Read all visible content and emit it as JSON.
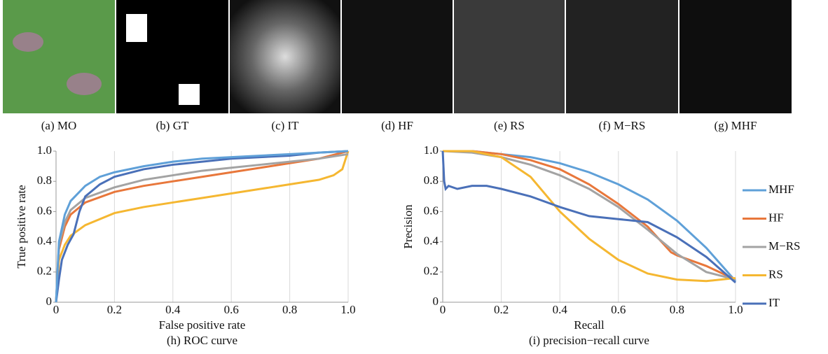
{
  "panels": [
    {
      "caption": "(a) MO"
    },
    {
      "caption": "(b) GT"
    },
    {
      "caption": "(c) IT"
    },
    {
      "caption": "(d) HF"
    },
    {
      "caption": "(e) RS"
    },
    {
      "caption": "(f) M−RS"
    },
    {
      "caption": "(g) MHF"
    }
  ],
  "chart_data": [
    {
      "type": "line",
      "title": "(h) ROC curve",
      "x_label": "False positive rate",
      "y_label": "True positive rate",
      "xlim": [
        0,
        1
      ],
      "ylim": [
        0,
        1
      ],
      "xticks": [
        0,
        0.2,
        0.4,
        0.6,
        0.8,
        {
          "value": 1,
          "label": "1.0"
        }
      ],
      "yticks": [
        0,
        0.2,
        0.4,
        0.6,
        0.8,
        {
          "value": 1,
          "label": "1.0"
        }
      ],
      "grid": "x",
      "series": [
        {
          "color": "#f5b731",
          "x": [
            0,
            0.01,
            0.03,
            0.05,
            0.1,
            0.2,
            0.3,
            0.4,
            0.5,
            0.6,
            0.7,
            0.8,
            0.9,
            0.95,
            0.98,
            1
          ],
          "values": [
            0,
            0.28,
            0.38,
            0.44,
            0.51,
            0.59,
            0.63,
            0.66,
            0.69,
            0.72,
            0.75,
            0.78,
            0.81,
            0.84,
            0.88,
            1
          ]
        },
        {
          "color": "#e8773b",
          "x": [
            0,
            0.01,
            0.03,
            0.05,
            0.1,
            0.2,
            0.3,
            0.4,
            0.5,
            0.6,
            0.7,
            0.8,
            0.9,
            1
          ],
          "values": [
            0,
            0.35,
            0.5,
            0.58,
            0.66,
            0.73,
            0.77,
            0.8,
            0.83,
            0.86,
            0.89,
            0.92,
            0.95,
            1
          ]
        },
        {
          "color": "#a3a3a3",
          "x": [
            0,
            0.01,
            0.03,
            0.05,
            0.1,
            0.2,
            0.3,
            0.4,
            0.5,
            0.6,
            0.7,
            0.8,
            0.9,
            1
          ],
          "values": [
            0,
            0.38,
            0.53,
            0.61,
            0.69,
            0.76,
            0.81,
            0.84,
            0.87,
            0.89,
            0.91,
            0.93,
            0.95,
            0.98
          ]
        },
        {
          "color": "#4a70b8",
          "x": [
            0,
            0.01,
            0.02,
            0.04,
            0.06,
            0.08,
            0.1,
            0.15,
            0.2,
            0.3,
            0.4,
            0.5,
            0.6,
            0.7,
            0.8,
            0.9,
            1
          ],
          "values": [
            0,
            0.15,
            0.28,
            0.38,
            0.45,
            0.6,
            0.7,
            0.78,
            0.83,
            0.88,
            0.91,
            0.93,
            0.95,
            0.96,
            0.97,
            0.99,
            1
          ]
        },
        {
          "color": "#5fa0d8",
          "x": [
            0,
            0.01,
            0.03,
            0.05,
            0.1,
            0.15,
            0.2,
            0.3,
            0.4,
            0.5,
            0.6,
            0.7,
            0.8,
            0.9,
            1
          ],
          "values": [
            0,
            0.4,
            0.58,
            0.67,
            0.77,
            0.83,
            0.86,
            0.9,
            0.93,
            0.95,
            0.96,
            0.97,
            0.98,
            0.99,
            1
          ]
        }
      ]
    },
    {
      "type": "line",
      "title": "(i) precision−recall curve",
      "x_label": "Recall",
      "y_label": "Precision",
      "xlim": [
        0,
        1
      ],
      "ylim": [
        0,
        1
      ],
      "xticks": [
        0,
        0.2,
        0.4,
        0.6,
        0.8,
        {
          "value": 1,
          "label": "1.0"
        }
      ],
      "yticks": [
        0,
        0.2,
        0.4,
        0.6,
        0.8,
        {
          "value": 1,
          "label": "1.0"
        }
      ],
      "grid": "x",
      "legend": "right",
      "series": [
        {
          "name": "MHF",
          "color": "#5fa0d8",
          "x": [
            0,
            0.1,
            0.2,
            0.3,
            0.4,
            0.5,
            0.6,
            0.7,
            0.8,
            0.9,
            0.95,
            1
          ],
          "values": [
            1,
            1,
            0.98,
            0.96,
            0.92,
            0.86,
            0.78,
            0.68,
            0.54,
            0.36,
            0.25,
            0.14
          ]
        },
        {
          "name": "HF",
          "color": "#e8773b",
          "x": [
            0,
            0.1,
            0.2,
            0.3,
            0.4,
            0.5,
            0.6,
            0.7,
            0.78,
            0.8,
            0.9,
            1
          ],
          "values": [
            1,
            1,
            0.98,
            0.94,
            0.88,
            0.78,
            0.65,
            0.5,
            0.33,
            0.31,
            0.24,
            0.15
          ]
        },
        {
          "name": "M−RS",
          "color": "#a3a3a3",
          "x": [
            0,
            0.1,
            0.2,
            0.3,
            0.4,
            0.5,
            0.6,
            0.7,
            0.8,
            0.9,
            1
          ],
          "values": [
            1,
            0.99,
            0.96,
            0.91,
            0.84,
            0.75,
            0.63,
            0.48,
            0.32,
            0.2,
            0.15
          ]
        },
        {
          "name": "RS",
          "color": "#f5b731",
          "x": [
            0,
            0.1,
            0.2,
            0.3,
            0.4,
            0.5,
            0.6,
            0.7,
            0.8,
            0.9,
            1
          ],
          "values": [
            1,
            1,
            0.96,
            0.83,
            0.6,
            0.42,
            0.28,
            0.19,
            0.15,
            0.14,
            0.16
          ]
        },
        {
          "name": "IT",
          "color": "#4a70b8",
          "x": [
            0,
            0.005,
            0.01,
            0.02,
            0.05,
            0.1,
            0.15,
            0.2,
            0.3,
            0.4,
            0.5,
            0.6,
            0.7,
            0.8,
            0.9,
            1
          ],
          "values": [
            1,
            0.8,
            0.75,
            0.77,
            0.75,
            0.77,
            0.77,
            0.75,
            0.7,
            0.63,
            0.57,
            0.55,
            0.53,
            0.43,
            0.3,
            0.13
          ]
        }
      ]
    }
  ]
}
